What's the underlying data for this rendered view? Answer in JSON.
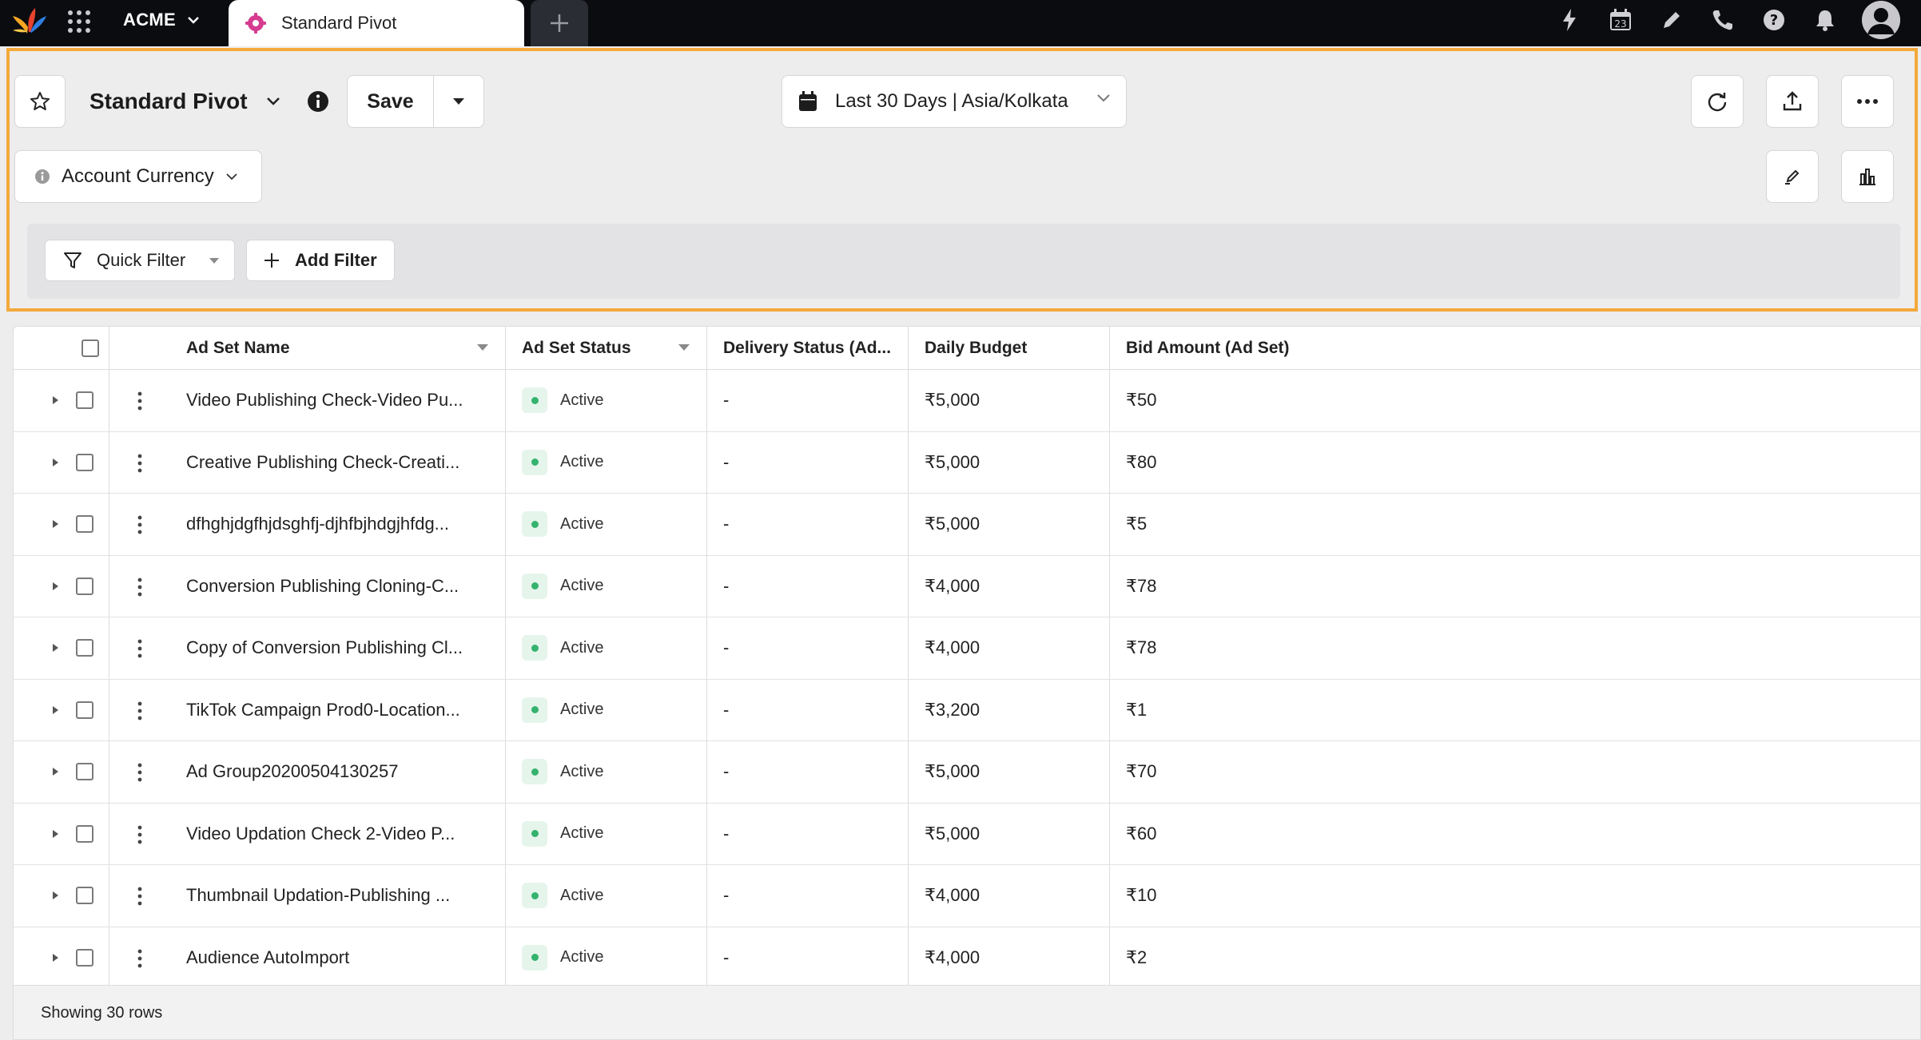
{
  "topbar": {
    "workspace": "ACME",
    "active_tab": "Standard Pivot",
    "icons": [
      "bolt-icon",
      "calendar-icon",
      "pencil-icon",
      "phone-icon",
      "help-icon",
      "bell-icon",
      "user-icon"
    ],
    "calendar_day": "23"
  },
  "header": {
    "title": "Standard Pivot",
    "save_label": "Save",
    "date_range": "Last 30 Days | Asia/Kolkata",
    "currency_label": "Account Currency",
    "quick_filter_label": "Quick Filter",
    "add_filter_label": "Add Filter"
  },
  "colors": {
    "accent_border": "#f4a93b",
    "topbar_bg": "#0b0c10",
    "active_status": "#35b36e"
  },
  "table": {
    "columns": [
      "Ad Set Name",
      "Ad Set Status",
      "Delivery Status (Ad...",
      "Daily Budget",
      "Bid Amount (Ad Set)"
    ],
    "rows": [
      {
        "name": "Video Publishing Check-Video Pu...",
        "status": "Active",
        "delivery": "-",
        "budget": "₹5,000",
        "bid": "₹50"
      },
      {
        "name": "Creative Publishing Check-Creati...",
        "status": "Active",
        "delivery": "-",
        "budget": "₹5,000",
        "bid": "₹80"
      },
      {
        "name": "dfhghjdgfhjdsghfj-djhfbjhdgjhfdg...",
        "status": "Active",
        "delivery": "-",
        "budget": "₹5,000",
        "bid": "₹5"
      },
      {
        "name": "Conversion Publishing Cloning-C...",
        "status": "Active",
        "delivery": "-",
        "budget": "₹4,000",
        "bid": "₹78"
      },
      {
        "name": "Copy of Conversion Publishing Cl...",
        "status": "Active",
        "delivery": "-",
        "budget": "₹4,000",
        "bid": "₹78"
      },
      {
        "name": "TikTok Campaign Prod0-Location...",
        "status": "Active",
        "delivery": "-",
        "budget": "₹3,200",
        "bid": "₹1"
      },
      {
        "name": "Ad Group20200504130257",
        "status": "Active",
        "delivery": "-",
        "budget": "₹5,000",
        "bid": "₹70"
      },
      {
        "name": "Video Updation Check 2-Video P...",
        "status": "Active",
        "delivery": "-",
        "budget": "₹5,000",
        "bid": "₹60"
      },
      {
        "name": "Thumbnail Updation-Publishing ...",
        "status": "Active",
        "delivery": "-",
        "budget": "₹4,000",
        "bid": "₹10"
      },
      {
        "name": "Audience AutoImport",
        "status": "Active",
        "delivery": "-",
        "budget": "₹4,000",
        "bid": "₹2"
      }
    ],
    "footer_text": "Showing 30 rows"
  }
}
